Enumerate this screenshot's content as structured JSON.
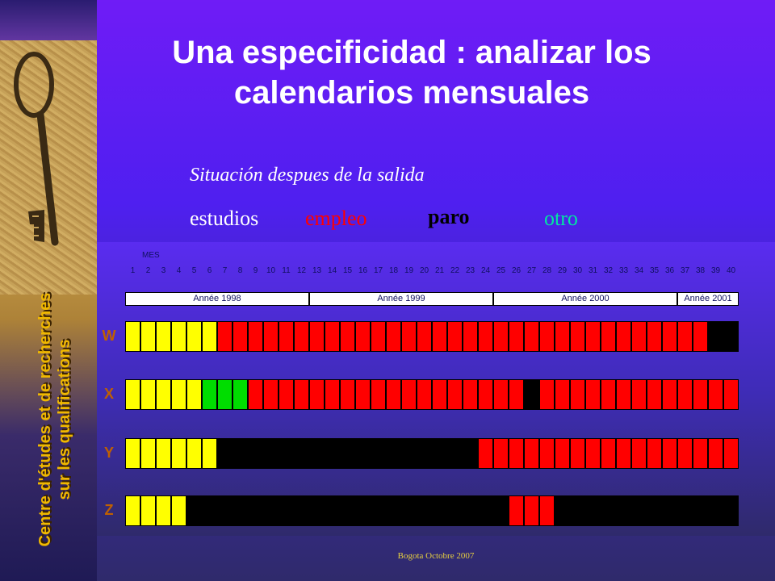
{
  "title": "Una especificidad : analizar los calendarios mensuales",
  "subtitle": "Situación despues de la salida",
  "sidebar_text": [
    "Centre d'études et de recherches",
    "sur les qualifications"
  ],
  "legend": [
    {
      "label": "estudios",
      "color": "#ffffff",
      "weight": "normal"
    },
    {
      "label": "empleo",
      "color": "#ff0000",
      "weight": "normal"
    },
    {
      "label": "paro",
      "color": "#000000",
      "weight": "bold"
    },
    {
      "label": "otro",
      "color": "#00e8a0",
      "weight": "normal"
    }
  ],
  "chart": {
    "months_label": "MES",
    "months": [
      "1",
      "2",
      "3",
      "4",
      "5",
      "6",
      "7",
      "8",
      "9",
      "10",
      "11",
      "12",
      "13",
      "14",
      "15",
      "16",
      "17",
      "18",
      "19",
      "20",
      "21",
      "22",
      "23",
      "24",
      "25",
      "26",
      "27",
      "28",
      "29",
      "30",
      "31",
      "32",
      "33",
      "34",
      "35",
      "36",
      "37",
      "38",
      "39",
      "40"
    ],
    "years": [
      {
        "label": "Année 1998",
        "months": 12
      },
      {
        "label": "Année 1999",
        "months": 12
      },
      {
        "label": "Année 2000",
        "months": 12
      },
      {
        "label": "Année 2001",
        "months": 4
      }
    ],
    "state_colors": {
      "estudios": "#ffff00",
      "empleo": "#ff0000",
      "paro": "#000000",
      "otro": "#00dd00"
    },
    "rows": [
      {
        "label": "W",
        "segments": [
          [
            "estudios",
            6
          ],
          [
            "empleo",
            32
          ],
          [
            "paro",
            2
          ]
        ]
      },
      {
        "label": "X",
        "segments": [
          [
            "estudios",
            5
          ],
          [
            "otro",
            3
          ],
          [
            "empleo",
            18
          ],
          [
            "paro",
            1
          ],
          [
            "empleo",
            13
          ]
        ]
      },
      {
        "label": "Y",
        "segments": [
          [
            "estudios",
            6
          ],
          [
            "paro",
            17
          ],
          [
            "empleo",
            17
          ]
        ]
      },
      {
        "label": "Z",
        "segments": [
          [
            "estudios",
            4
          ],
          [
            "paro",
            21
          ],
          [
            "empleo",
            3
          ],
          [
            "paro",
            12
          ]
        ]
      }
    ]
  },
  "footer": "Bogota Octobre 2007"
}
